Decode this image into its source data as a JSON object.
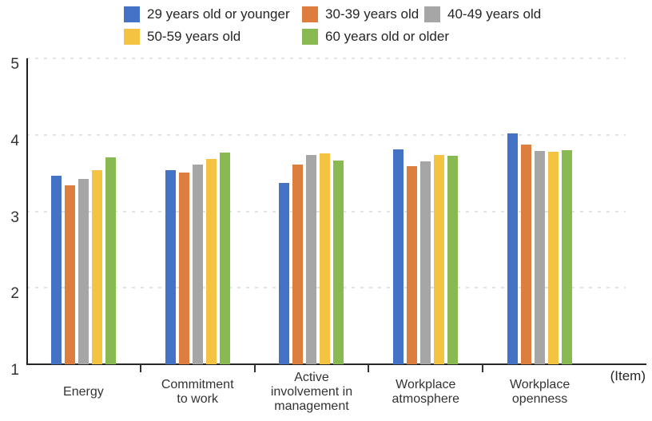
{
  "chart_data": {
    "type": "bar",
    "title": "",
    "categories": [
      "Energy",
      "Commitment\nto work",
      "Active\ninvolvement in\nmanagement",
      "Workplace\natmosphere",
      "Workplace\nopenness"
    ],
    "series": [
      {
        "name": "29 years old or younger",
        "color": "#4472C4",
        "values": [
          3.47,
          3.54,
          3.37,
          3.81,
          4.02
        ]
      },
      {
        "name": "30-39 years old",
        "color": "#DD7E3E",
        "values": [
          3.34,
          3.51,
          3.61,
          3.59,
          3.87
        ]
      },
      {
        "name": "40-49 years old",
        "color": "#A6A6A6",
        "values": [
          3.42,
          3.61,
          3.74,
          3.65,
          3.79
        ]
      },
      {
        "name": "50-59 years old",
        "color": "#F5C342",
        "values": [
          3.54,
          3.68,
          3.76,
          3.74,
          3.78
        ]
      },
      {
        "name": "60 years old or older",
        "color": "#88BA51",
        "values": [
          3.7,
          3.77,
          3.66,
          3.73,
          3.8
        ]
      }
    ],
    "ylim": [
      1,
      5
    ],
    "yticks": [
      5,
      4,
      3,
      2,
      1
    ],
    "x_axis_label": "(Item)",
    "legend_position": "top",
    "grid": "horizontal-dashed"
  }
}
